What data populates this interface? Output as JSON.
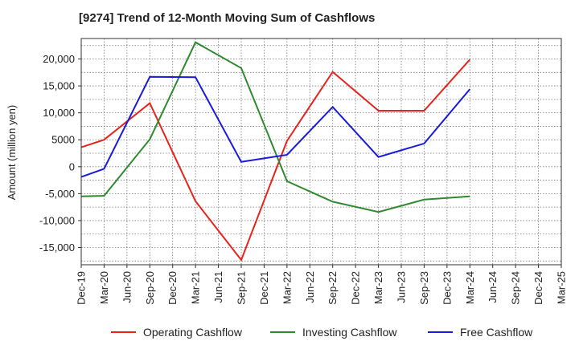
{
  "chart_data": {
    "type": "line",
    "title": "[9274]  Trend of 12-Month Moving Sum of Cashflows",
    "xlabel": "",
    "ylabel": "Amount (million yen)",
    "categories": [
      "Dec-19",
      "Mar-20",
      "Jun-20",
      "Sep-20",
      "Dec-20",
      "Mar-21",
      "Jun-21",
      "Sep-21",
      "Dec-21",
      "Mar-22",
      "Jun-22",
      "Sep-22",
      "Dec-22",
      "Mar-23",
      "Jun-23",
      "Sep-23",
      "Dec-23",
      "Mar-24",
      "Jun-24",
      "Sep-24",
      "Dec-24",
      "Mar-25"
    ],
    "yticks": [
      -15000,
      -10000,
      -5000,
      0,
      5000,
      10000,
      15000,
      20000
    ],
    "ytick_labels": [
      "-15,000",
      "-10,000",
      "-5,000",
      "0",
      "5000",
      "10,000",
      "15,000",
      "20,000"
    ],
    "ylim": [
      -18200,
      23800
    ],
    "grid": true,
    "legend": "bottom",
    "series": [
      {
        "name": "Operating Cashflow",
        "color": "#e8231c",
        "values": [
          3600,
          5000,
          null,
          11800,
          null,
          -6400,
          null,
          -17300,
          null,
          4800,
          null,
          17600,
          null,
          10400,
          null,
          10400,
          null,
          19900,
          null,
          null,
          null,
          null
        ]
      },
      {
        "name": "Investing Cashflow",
        "color": "#2f8a2f",
        "values": [
          -5500,
          -5400,
          null,
          5100,
          null,
          23100,
          null,
          18300,
          null,
          -2700,
          null,
          -6500,
          null,
          -8400,
          null,
          -6100,
          null,
          -5500,
          null,
          null,
          null,
          null
        ]
      },
      {
        "name": "Free Cashflow",
        "color": "#1a1adb",
        "values": [
          -1900,
          -400,
          null,
          16700,
          null,
          16600,
          null,
          900,
          null,
          2200,
          null,
          11100,
          null,
          1800,
          null,
          4300,
          null,
          14400,
          null,
          null,
          null,
          null
        ]
      }
    ]
  }
}
